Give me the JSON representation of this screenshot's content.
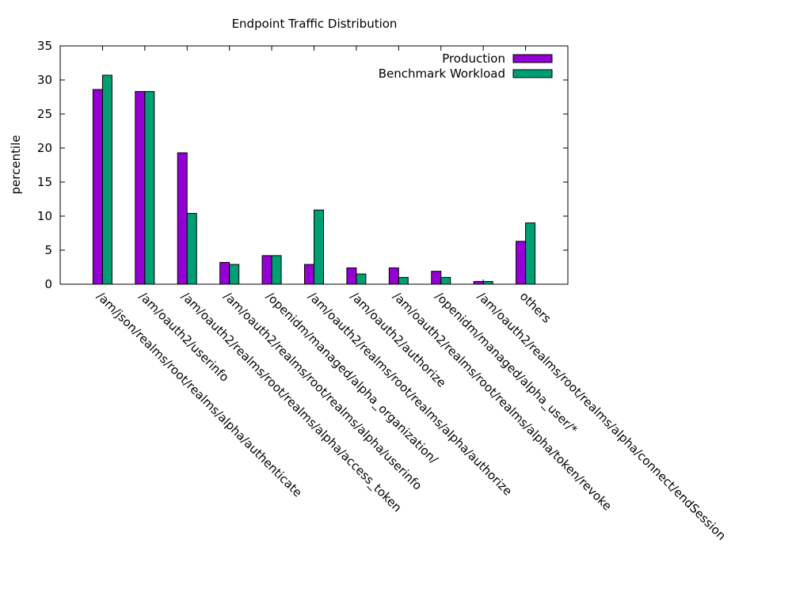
{
  "chart_data": {
    "type": "bar",
    "title": "Endpoint Traffic Distribution",
    "xlabel": "",
    "ylabel": "percentile",
    "ylim": [
      0,
      35
    ],
    "yticks": [
      0,
      5,
      10,
      15,
      20,
      25,
      30,
      35
    ],
    "grid": false,
    "legend_position": "top-right",
    "categories": [
      "/am/json/realms/root/realms/alpha/authenticate",
      "/am/oauth2/userinfo",
      "/am/oauth2/realms/root/realms/alpha/access_token",
      "/am/oauth2/realms/root/realms/alpha/userinfo",
      "/openidm/managed/alpha_organization/",
      "/am/oauth2/realms/root/realms/alpha/authorize",
      "/am/oauth2/authorize",
      "/am/oauth2/realms/root/realms/alpha/token/revoke",
      "/openidm/managed/alpha_user/*",
      "/am/oauth2/realms/root/realms/alpha/connect/endSession",
      "others"
    ],
    "series": [
      {
        "name": "Production",
        "color": "#9400d3",
        "values": [
          28.6,
          28.3,
          19.3,
          3.2,
          4.2,
          2.9,
          2.4,
          2.4,
          1.9,
          0.4,
          6.3
        ]
      },
      {
        "name": "Benchmark Workload",
        "color": "#009e73",
        "values": [
          30.7,
          28.3,
          10.4,
          2.9,
          4.2,
          10.9,
          1.5,
          1.0,
          1.0,
          0.4,
          9.0
        ]
      }
    ]
  }
}
